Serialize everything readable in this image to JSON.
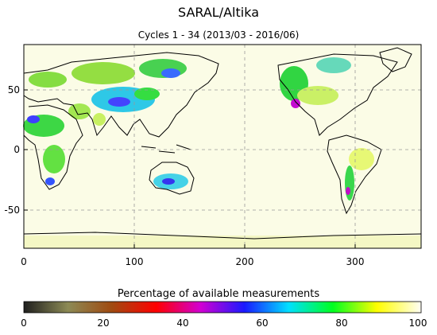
{
  "title": "SARAL/Altika",
  "subtitle": "Cycles 1 - 34 (2013/03 - 2016/06)",
  "map": {
    "x_ticks": [
      "0",
      "100",
      "200",
      "300"
    ],
    "y_ticks": [
      "50",
      "0",
      "-50"
    ],
    "x_range": [
      0,
      360
    ],
    "y_range": [
      -90,
      90
    ],
    "background_color": "#fbfce6",
    "gridlines": true
  },
  "colorbar": {
    "label": "Percentage of available measurements",
    "ticks": [
      "0",
      "20",
      "40",
      "60",
      "80",
      "100"
    ],
    "range": [
      0,
      100
    ],
    "colors": [
      "#1f1f1f",
      "#8c8a55",
      "#a04a10",
      "#ff0000",
      "#d200d2",
      "#1a1aff",
      "#00e0ff",
      "#00ff20",
      "#fffe00",
      "#fffef5"
    ]
  }
}
